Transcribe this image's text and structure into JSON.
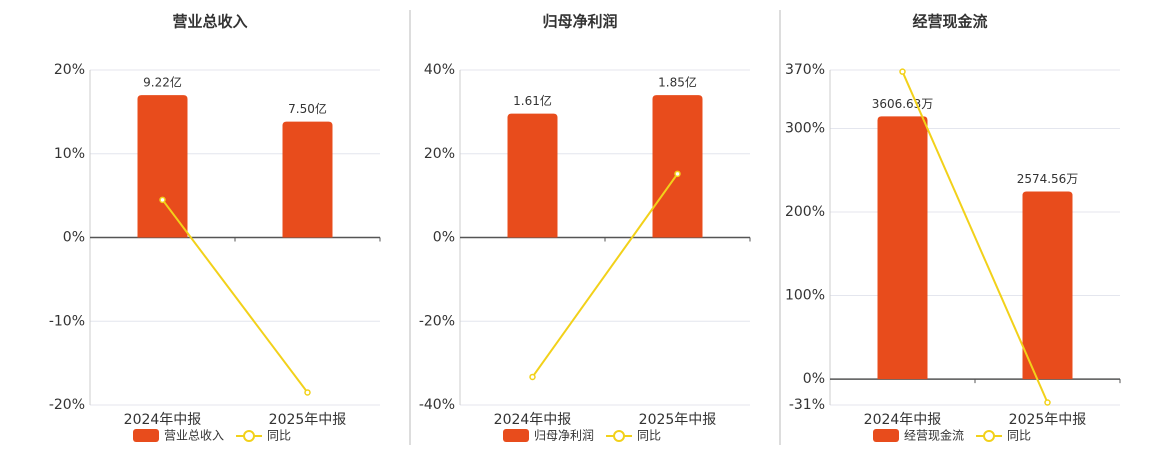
{
  "chart_data": [
    {
      "type": "bar",
      "title": "营业总收入",
      "categories": [
        "2024年中报",
        "2025年中报"
      ],
      "series": [
        {
          "name": "营业总收入",
          "type": "bar",
          "color": "#e84c1c",
          "values": [
            9.22,
            7.5
          ],
          "value_labels": [
            "9.22亿",
            "7.50亿"
          ]
        },
        {
          "name": "同比",
          "type": "line",
          "axis": "y",
          "color": "#f2d11a",
          "values": [
            4.5,
            -18.5
          ]
        }
      ],
      "ylim": [
        -20,
        20
      ],
      "yticks": [
        {
          "value": -20,
          "label": "-20%"
        },
        {
          "value": -10,
          "label": "-10%"
        },
        {
          "value": 0,
          "label": "0%"
        },
        {
          "value": 10,
          "label": "10%"
        },
        {
          "value": 20,
          "label": "20%"
        }
      ],
      "grid": true
    },
    {
      "type": "bar",
      "title": "归母净利润",
      "categories": [
        "2024年中报",
        "2025年中报"
      ],
      "series": [
        {
          "name": "归母净利润",
          "type": "bar",
          "color": "#e84c1c",
          "values": [
            1.61,
            1.85
          ],
          "value_labels": [
            "1.61亿",
            "1.85亿"
          ]
        },
        {
          "name": "同比",
          "type": "line",
          "axis": "y",
          "color": "#f2d11a",
          "values": [
            -33.3,
            15.2
          ]
        }
      ],
      "ylim": [
        -40,
        40
      ],
      "yticks": [
        {
          "value": -40,
          "label": "-40%"
        },
        {
          "value": -20,
          "label": "-20%"
        },
        {
          "value": 0,
          "label": "0%"
        },
        {
          "value": 20,
          "label": "20%"
        },
        {
          "value": 40,
          "label": "40%"
        }
      ],
      "grid": true
    },
    {
      "type": "bar",
      "title": "经营现金流",
      "categories": [
        "2024年中报",
        "2025年中报"
      ],
      "series": [
        {
          "name": "经营现金流",
          "type": "bar",
          "color": "#e84c1c",
          "values": [
            3606.63,
            2574.56
          ],
          "value_labels": [
            "3606.63万",
            "2574.56万"
          ]
        },
        {
          "name": "同比",
          "type": "line",
          "axis": "y",
          "color": "#f2d11a",
          "values": [
            368,
            -28
          ]
        }
      ],
      "ylim": [
        -31,
        370
      ],
      "yticks": [
        {
          "value": -31,
          "label": "-31%"
        },
        {
          "value": 0,
          "label": "0%"
        },
        {
          "value": 100,
          "label": "100%"
        },
        {
          "value": 200,
          "label": "200%"
        },
        {
          "value": 300,
          "label": "300%"
        },
        {
          "value": 370,
          "label": "370%"
        }
      ],
      "grid": true
    }
  ]
}
